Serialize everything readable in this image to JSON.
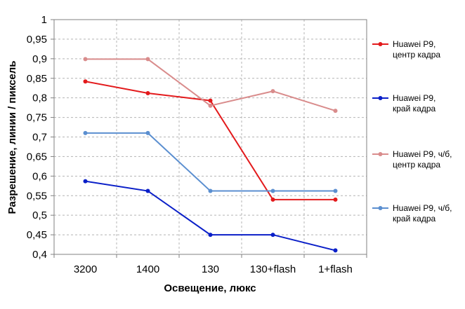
{
  "chart_data": {
    "type": "line",
    "categories": [
      "3200",
      "1400",
      "130",
      "130+flash",
      "1+flash"
    ],
    "series": [
      {
        "name_lines": [
          "Huawei P9,",
          "центр кадра"
        ],
        "color": "#e31a1c",
        "values": [
          0.842,
          0.812,
          0.793,
          0.54,
          0.54
        ]
      },
      {
        "name_lines": [
          "Huawei P9,",
          "край кадра"
        ],
        "color": "#0a1fc8",
        "values": [
          0.587,
          0.562,
          0.45,
          0.45,
          0.41
        ]
      },
      {
        "name_lines": [
          "Huawei P9, ч/б,",
          "центр кадра"
        ],
        "color": "#d98c8c",
        "values": [
          0.899,
          0.899,
          0.78,
          0.817,
          0.767
        ]
      },
      {
        "name_lines": [
          "Huawei P9, ч/б,",
          "край кадра"
        ],
        "color": "#5b8fd0",
        "values": [
          0.71,
          0.71,
          0.562,
          0.562,
          0.562
        ]
      }
    ],
    "xlabel": "Освещение,  люкс",
    "ylabel": "Разрешение,  линии  / пиксель",
    "ylim": [
      0.4,
      1.0
    ],
    "ytick_labels": [
      "0,4",
      "0,45",
      "0,5",
      "0,55",
      "0,6",
      "0,65",
      "0,7",
      "0,75",
      "0,8",
      "0,85",
      "0,9",
      "0,95",
      "1"
    ],
    "grid": true,
    "legend_position": "right"
  }
}
